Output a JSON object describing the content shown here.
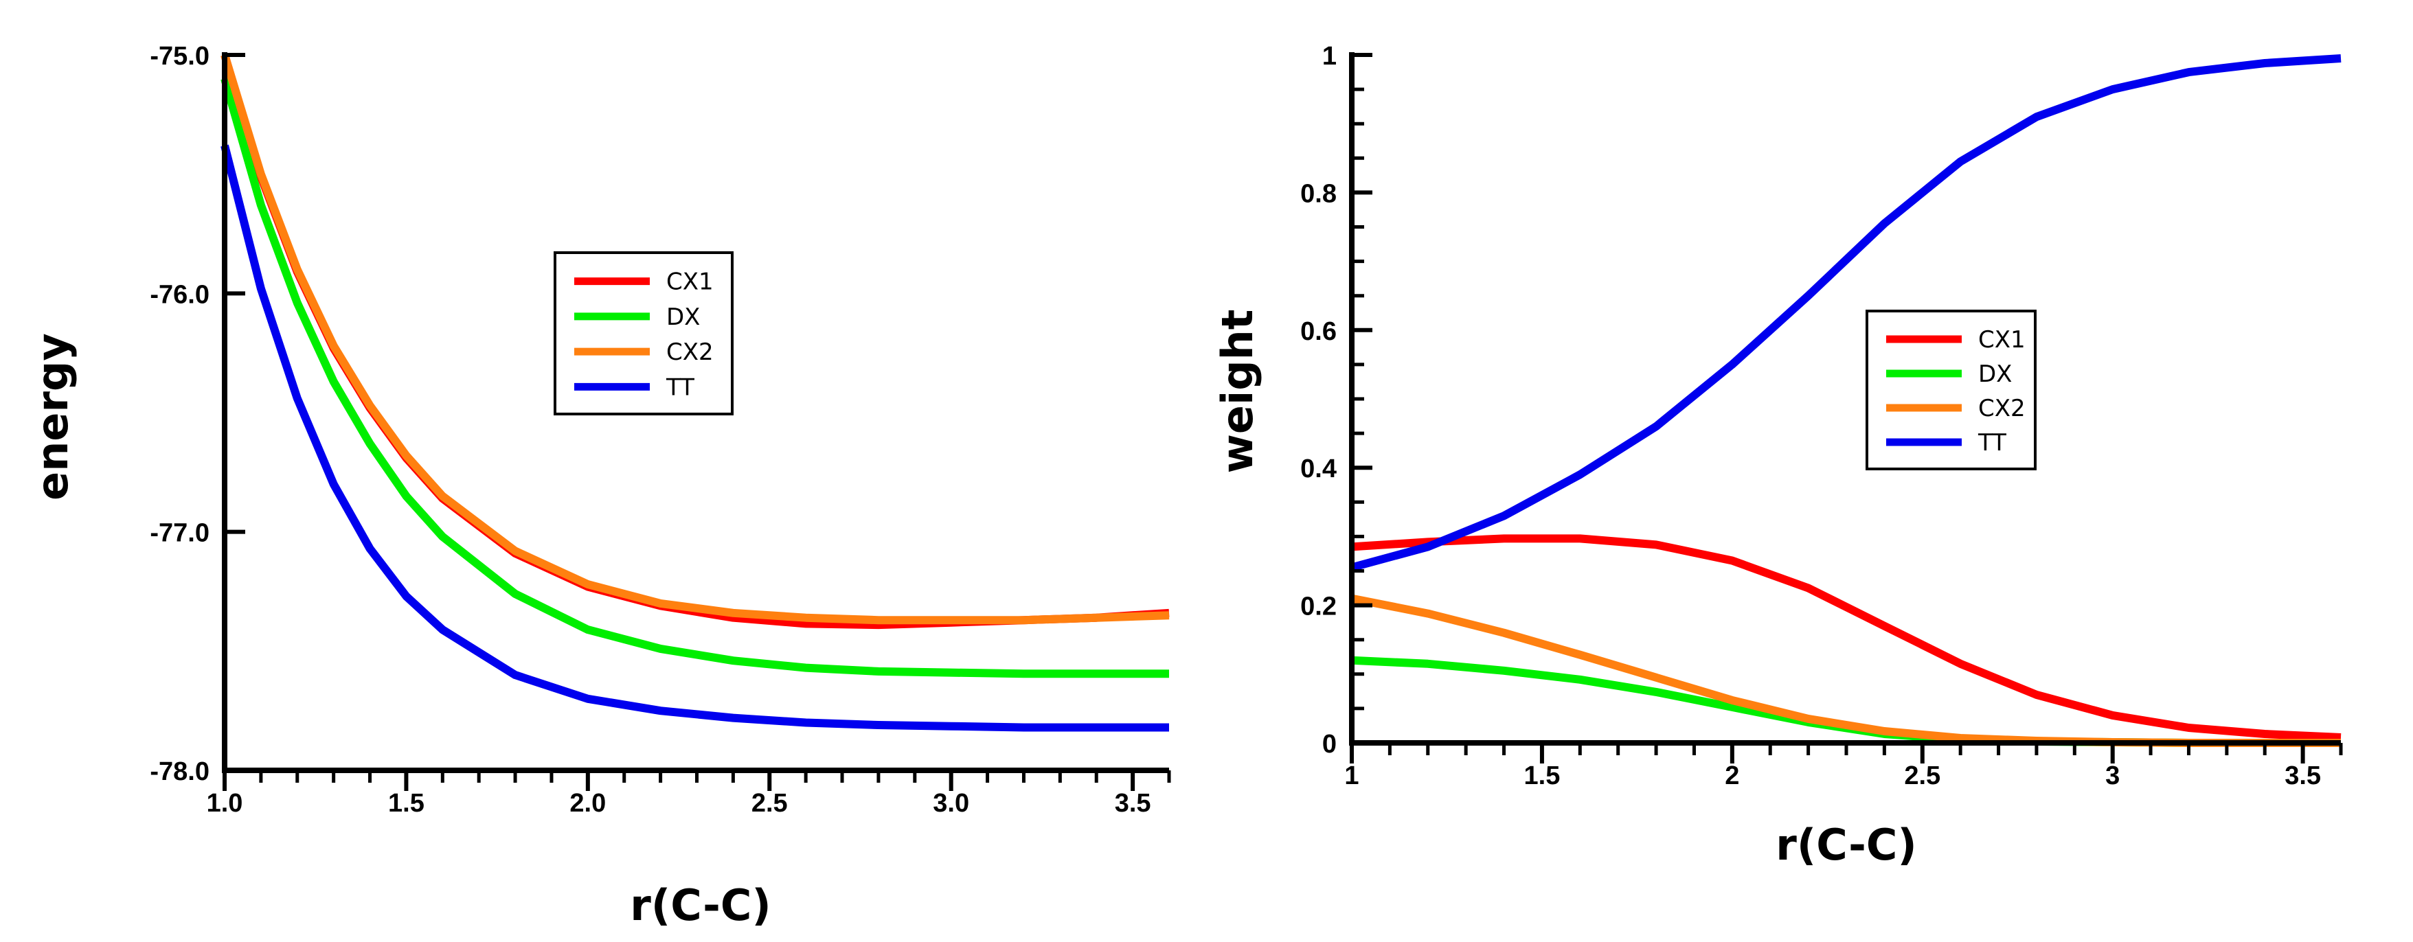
{
  "chart_data": [
    {
      "type": "line",
      "title": "",
      "xlabel": "r(C-C)",
      "ylabel": "energy",
      "xlim": [
        1.0,
        3.6
      ],
      "ylim": [
        -78.0,
        -75.0
      ],
      "xticks": [
        1.0,
        1.5,
        2.0,
        2.5,
        3.0,
        3.5
      ],
      "xtick_labels": [
        "1.0",
        "1.5",
        "2.0",
        "2.5",
        "3.0",
        "3.5"
      ],
      "yticks": [
        -75.0,
        -76.0,
        -77.0,
        -78.0
      ],
      "ytick_labels": [
        "-75.0",
        "-76.0",
        "-77.0",
        "-78.0"
      ],
      "grid": false,
      "legend_position": "center",
      "series": [
        {
          "name": "CX1",
          "color": "#ff0000",
          "x": [
            1.0,
            1.1,
            1.2,
            1.3,
            1.4,
            1.5,
            1.6,
            1.8,
            2.0,
            2.2,
            2.4,
            2.6,
            2.8,
            3.0,
            3.2,
            3.4,
            3.6
          ],
          "y": [
            -75.0,
            -75.51,
            -75.91,
            -76.23,
            -76.48,
            -76.69,
            -76.86,
            -77.09,
            -77.23,
            -77.31,
            -77.36,
            -77.385,
            -77.39,
            -77.38,
            -77.37,
            -77.36,
            -77.34
          ]
        },
        {
          "name": "DX",
          "color": "#00ee00",
          "x": [
            1.0,
            1.1,
            1.2,
            1.3,
            1.4,
            1.5,
            1.6,
            1.8,
            2.0,
            2.2,
            2.4,
            2.6,
            2.8,
            3.0,
            3.2,
            3.4,
            3.6
          ],
          "y": [
            -75.1,
            -75.63,
            -76.04,
            -76.37,
            -76.63,
            -76.85,
            -77.02,
            -77.26,
            -77.41,
            -77.49,
            -77.54,
            -77.57,
            -77.585,
            -77.59,
            -77.595,
            -77.595,
            -77.595
          ]
        },
        {
          "name": "CX2",
          "color": "#ff8010",
          "x": [
            1.0,
            1.1,
            1.2,
            1.3,
            1.4,
            1.5,
            1.6,
            1.8,
            2.0,
            2.2,
            2.4,
            2.6,
            2.8,
            3.0,
            3.2,
            3.4,
            3.6
          ],
          "y": [
            -75.0,
            -75.5,
            -75.9,
            -76.22,
            -76.47,
            -76.68,
            -76.85,
            -77.08,
            -77.22,
            -77.3,
            -77.34,
            -77.36,
            -77.37,
            -77.37,
            -77.37,
            -77.36,
            -77.35
          ]
        },
        {
          "name": "TT",
          "color": "#0000ee",
          "x": [
            1.0,
            1.1,
            1.2,
            1.3,
            1.4,
            1.5,
            1.6,
            1.8,
            2.0,
            2.2,
            2.4,
            2.6,
            2.8,
            3.0,
            3.2,
            3.4,
            3.6
          ],
          "y": [
            -75.38,
            -75.98,
            -76.44,
            -76.8,
            -77.07,
            -77.27,
            -77.41,
            -77.6,
            -77.7,
            -77.75,
            -77.78,
            -77.8,
            -77.81,
            -77.815,
            -77.82,
            -77.82,
            -77.82
          ]
        }
      ]
    },
    {
      "type": "line",
      "title": "",
      "xlabel": "r(C-C)",
      "ylabel": "weight",
      "xlim": [
        1.0,
        3.6
      ],
      "ylim": [
        0,
        1
      ],
      "xticks": [
        1,
        1.5,
        2,
        2.5,
        3,
        3.5
      ],
      "xtick_labels": [
        "1",
        "1.5",
        "2",
        "2.5",
        "3",
        "3.5"
      ],
      "yticks": [
        0,
        0.2,
        0.4,
        0.6,
        0.8,
        1
      ],
      "ytick_labels": [
        "0",
        "0.2",
        "0.4",
        "0.6",
        "0.8",
        "1"
      ],
      "grid": false,
      "legend_position": "center-right",
      "series": [
        {
          "name": "CX1",
          "color": "#ff0000",
          "x": [
            1.0,
            1.2,
            1.4,
            1.6,
            1.8,
            2.0,
            2.2,
            2.4,
            2.6,
            2.8,
            3.0,
            3.2,
            3.4,
            3.6
          ],
          "y": [
            0.285,
            0.292,
            0.297,
            0.297,
            0.288,
            0.265,
            0.225,
            0.17,
            0.115,
            0.07,
            0.04,
            0.022,
            0.013,
            0.008
          ]
        },
        {
          "name": "DX",
          "color": "#00ee00",
          "x": [
            1.0,
            1.2,
            1.4,
            1.6,
            1.8,
            2.0,
            2.2,
            2.4,
            2.6,
            2.8,
            3.0,
            3.2,
            3.4,
            3.6
          ],
          "y": [
            0.12,
            0.115,
            0.105,
            0.092,
            0.074,
            0.052,
            0.03,
            0.013,
            0.005,
            0.002,
            0.001,
            0.0,
            0.0,
            0.0
          ]
        },
        {
          "name": "CX2",
          "color": "#ff8010",
          "x": [
            1.0,
            1.2,
            1.4,
            1.6,
            1.8,
            2.0,
            2.2,
            2.4,
            2.6,
            2.8,
            3.0,
            3.2,
            3.4,
            3.6
          ],
          "y": [
            0.21,
            0.188,
            0.16,
            0.128,
            0.095,
            0.062,
            0.035,
            0.017,
            0.007,
            0.003,
            0.001,
            0.0,
            0.0,
            0.0
          ]
        },
        {
          "name": "TT",
          "color": "#0000ee",
          "x": [
            1.0,
            1.2,
            1.4,
            1.6,
            1.8,
            2.0,
            2.2,
            2.4,
            2.6,
            2.8,
            3.0,
            3.2,
            3.4,
            3.6
          ],
          "y": [
            0.255,
            0.285,
            0.33,
            0.39,
            0.46,
            0.55,
            0.65,
            0.755,
            0.845,
            0.91,
            0.95,
            0.975,
            0.988,
            0.995
          ]
        }
      ]
    }
  ]
}
